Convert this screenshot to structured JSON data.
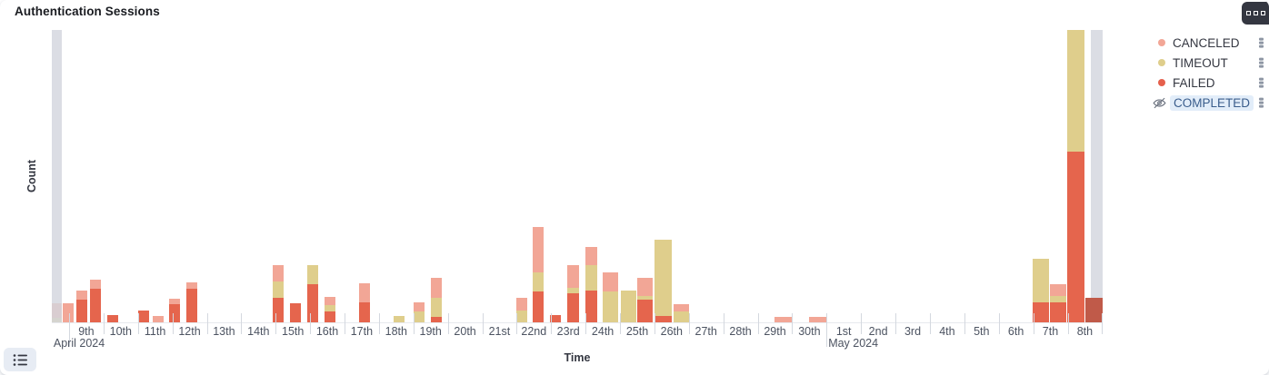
{
  "panel": {
    "title": "Authentication Sessions"
  },
  "controls": {
    "options_button_icon": "boxes-menu-icon",
    "legend_toggle_icon": "list-icon",
    "legend_item_action_icon": "vertical-dots-icon",
    "hidden_series_icon": "eye-slash-icon"
  },
  "legend": {
    "items": [
      {
        "label": "CANCELED",
        "color": "#F2A696",
        "hidden": false
      },
      {
        "label": "TIMEOUT",
        "color": "#DFCE8C",
        "hidden": false
      },
      {
        "label": "FAILED",
        "color": "#E5604C",
        "hidden": false
      },
      {
        "label": "COMPLETED",
        "color": "",
        "hidden": true
      }
    ]
  },
  "chart_data": {
    "type": "bar",
    "stacked": true,
    "title": "Authentication Sessions",
    "xlabel": "Time",
    "ylabel": "Count",
    "x_domain": "2024-04-08 12:00 to 2024-05-09 00:00, 12-hour buckets",
    "ylim": [
      0,
      322
    ],
    "grid": false,
    "legend_position": "right",
    "series_colors": {
      "failed": "#E5654D",
      "timeout": "#DFCE8C",
      "canceled": "#F2A696"
    },
    "dim_color": "#C05A49",
    "off_domain_color": "rgba(211,214,222,0.82)",
    "x_ticks": [
      {
        "label": "9th",
        "t": 1.5
      },
      {
        "label": "10th",
        "t": 2.5
      },
      {
        "label": "11th",
        "t": 3.5
      },
      {
        "label": "12th",
        "t": 4.5
      },
      {
        "label": "13th",
        "t": 5.5
      },
      {
        "label": "14th",
        "t": 6.5
      },
      {
        "label": "15th",
        "t": 7.5
      },
      {
        "label": "16th",
        "t": 8.5
      },
      {
        "label": "17th",
        "t": 9.5
      },
      {
        "label": "18th",
        "t": 10.5
      },
      {
        "label": "19th",
        "t": 11.5
      },
      {
        "label": "20th",
        "t": 12.5
      },
      {
        "label": "21st",
        "t": 13.5
      },
      {
        "label": "22nd",
        "t": 14.5
      },
      {
        "label": "23rd",
        "t": 15.5
      },
      {
        "label": "24th",
        "t": 16.5
      },
      {
        "label": "25th",
        "t": 17.5
      },
      {
        "label": "26th",
        "t": 18.5
      },
      {
        "label": "27th",
        "t": 19.5
      },
      {
        "label": "28th",
        "t": 20.5
      },
      {
        "label": "29th",
        "t": 21.5
      },
      {
        "label": "30th",
        "t": 22.5
      },
      {
        "label": "1st",
        "t": 23.5
      },
      {
        "label": "2nd",
        "t": 24.5
      },
      {
        "label": "3rd",
        "t": 25.5
      },
      {
        "label": "4th",
        "t": 26.5
      },
      {
        "label": "5th",
        "t": 27.5
      },
      {
        "label": "6th",
        "t": 28.5
      },
      {
        "label": "7th",
        "t": 29.5
      },
      {
        "label": "8th",
        "t": 30.5
      }
    ],
    "month_labels": [
      {
        "label": "April 2024",
        "t": 0.55,
        "tick_t": 1
      },
      {
        "label": "May 2024",
        "t": 23.05,
        "tick_t": 23
      }
    ],
    "bars": [
      {
        "t": 0.5,
        "w": 0.3,
        "timeout": 5,
        "canceled": 16
      },
      {
        "t": 0.82,
        "w": 0.32,
        "canceled": 21
      },
      {
        "t": 1.21,
        "w": 0.32,
        "failed": 25,
        "canceled": 10
      },
      {
        "t": 1.61,
        "w": 0.32,
        "failed": 37,
        "canceled": 10
      },
      {
        "t": 2.11,
        "w": 0.32,
        "failed": 8
      },
      {
        "t": 3.01,
        "w": 0.32,
        "failed": 13
      },
      {
        "t": 3.43,
        "w": 0.32,
        "canceled": 7
      },
      {
        "t": 3.91,
        "w": 0.32,
        "failed": 20,
        "canceled": 6
      },
      {
        "t": 4.41,
        "w": 0.32,
        "failed": 37,
        "canceled": 7
      },
      {
        "t": 6.91,
        "w": 0.32,
        "failed": 27,
        "timeout": 18,
        "canceled": 18
      },
      {
        "t": 7.42,
        "w": 0.32,
        "failed": 21
      },
      {
        "t": 7.92,
        "w": 0.32,
        "failed": 42,
        "timeout": 21
      },
      {
        "t": 8.42,
        "w": 0.32,
        "failed": 12,
        "timeout": 7,
        "canceled": 9
      },
      {
        "t": 9.42,
        "w": 0.32,
        "failed": 22,
        "canceled": 21
      },
      {
        "t": 10.43,
        "w": 0.32,
        "timeout": 7
      },
      {
        "t": 11.01,
        "w": 0.32,
        "timeout": 12,
        "canceled": 10
      },
      {
        "t": 11.51,
        "w": 0.32,
        "failed": 6,
        "timeout": 21,
        "canceled": 22
      },
      {
        "t": 13.99,
        "w": 0.32,
        "timeout": 13,
        "canceled": 14
      },
      {
        "t": 14.46,
        "w": 0.32,
        "failed": 34,
        "timeout": 21,
        "canceled": 50
      },
      {
        "t": 14.97,
        "w": 0.32,
        "failed": 8
      },
      {
        "t": 15.47,
        "w": 0.35,
        "failed": 32,
        "timeout": 6,
        "canceled": 25
      },
      {
        "t": 16.0,
        "w": 0.35,
        "failed": 35,
        "timeout": 28,
        "canceled": 20
      },
      {
        "t": 16.5,
        "w": 0.45,
        "timeout": 34,
        "canceled": 21
      },
      {
        "t": 17.03,
        "w": 0.45,
        "timeout": 35
      },
      {
        "t": 17.5,
        "w": 0.45,
        "failed": 25,
        "timeout": 4,
        "canceled": 20
      },
      {
        "t": 18.0,
        "w": 0.5,
        "failed": 7,
        "timeout": 84
      },
      {
        "t": 18.56,
        "w": 0.45,
        "timeout": 12,
        "canceled": 8
      },
      {
        "t": 21.49,
        "w": 0.5,
        "canceled": 6
      },
      {
        "t": 22.49,
        "w": 0.5,
        "canceled": 6
      },
      {
        "t": 28.98,
        "w": 0.48,
        "failed": 22,
        "timeout": 48
      },
      {
        "t": 29.49,
        "w": 0.48,
        "failed": 22,
        "timeout": 7,
        "canceled": 13
      },
      {
        "t": 29.99,
        "w": 0.5,
        "failed": 188,
        "timeout": 134,
        "clipped": true
      },
      {
        "t": 30.52,
        "w": 0.5,
        "failed": 27,
        "dim": true,
        "front": true
      }
    ],
    "off_domain_markers": [
      {
        "t": 0.5,
        "w": 0.3
      },
      {
        "t": 30.67,
        "w": 0.33
      }
    ]
  }
}
